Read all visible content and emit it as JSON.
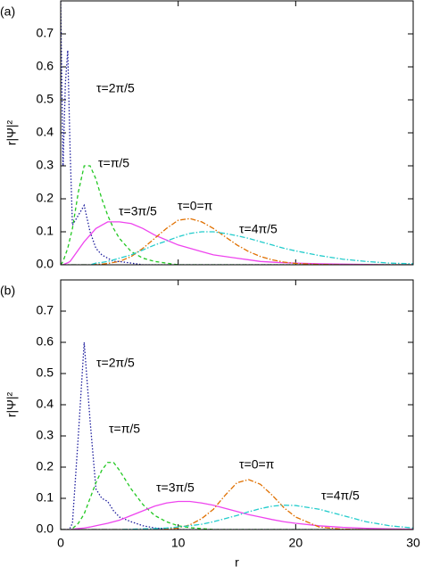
{
  "chart_data": [
    {
      "type": "line",
      "panel_label": "(a)",
      "ylabel": "r|Ψ|²",
      "x": [
        0,
        0.2,
        0.4,
        0.6,
        0.8,
        1,
        1.5,
        2,
        2.5,
        3,
        3.5,
        4,
        4.5,
        5,
        6,
        7,
        8,
        9,
        10,
        11,
        12,
        13,
        14,
        15,
        16,
        17,
        18,
        19,
        20,
        22,
        24,
        26,
        28,
        30
      ],
      "xlim": [
        0,
        30
      ],
      "xticks": [
        0,
        10,
        20,
        30
      ],
      "show_xtick_labels": false,
      "ylim": [
        0,
        0.8
      ],
      "yticks": [
        {
          "value": 0,
          "label": "0.0"
        },
        0.1,
        0.2,
        0.3,
        0.4,
        0.5,
        0.6,
        0.7
      ],
      "series": [
        {
          "name": "τ=2π/5",
          "color": "#1c1c9c",
          "linestyle": "dotted",
          "values": [
            0.8,
            0.3,
            0.55,
            0.65,
            0.35,
            0.12,
            0.15,
            0.18,
            0.1,
            0.05,
            0.03,
            0.02,
            0.01,
            0.01,
            0.005,
            0,
            0,
            0,
            0,
            0,
            0,
            0,
            0,
            0,
            0,
            0,
            0,
            0,
            0,
            0,
            0,
            0,
            0,
            0
          ]
        },
        {
          "name": "τ=π/5",
          "color": "#22c822",
          "linestyle": "dashed",
          "values": [
            0,
            0.01,
            0.03,
            0.05,
            0.08,
            0.11,
            0.22,
            0.3,
            0.3,
            0.26,
            0.2,
            0.15,
            0.11,
            0.08,
            0.04,
            0.02,
            0.01,
            0.005,
            0,
            0,
            0,
            0,
            0,
            0,
            0,
            0,
            0,
            0,
            0,
            0,
            0,
            0,
            0,
            0
          ]
        },
        {
          "name": "τ=3π/5",
          "color": "#ee44ee",
          "linestyle": "solid",
          "values": [
            0,
            0,
            0.003,
            0.006,
            0.01,
            0.02,
            0.045,
            0.07,
            0.09,
            0.11,
            0.12,
            0.13,
            0.13,
            0.13,
            0.125,
            0.11,
            0.09,
            0.075,
            0.06,
            0.05,
            0.04,
            0.03,
            0.025,
            0.02,
            0.015,
            0.01,
            0.008,
            0.006,
            0.005,
            0.003,
            0.002,
            0.001,
            0,
            0
          ]
        },
        {
          "name": "τ=0=π",
          "color": "#e07000",
          "linestyle": "dashdot",
          "values": [
            0,
            0,
            0,
            0,
            0,
            0,
            0,
            0,
            0,
            0.001,
            0.002,
            0.004,
            0.007,
            0.01,
            0.025,
            0.05,
            0.08,
            0.11,
            0.135,
            0.14,
            0.13,
            0.11,
            0.085,
            0.06,
            0.04,
            0.025,
            0.015,
            0.008,
            0.004,
            0.001,
            0,
            0,
            0,
            0
          ]
        },
        {
          "name": "τ=4π/5",
          "color": "#22cccc",
          "linestyle": "dashdot",
          "values": [
            0,
            0,
            0,
            0,
            0,
            0,
            0,
            0,
            0,
            0.005,
            0.007,
            0.01,
            0.015,
            0.02,
            0.03,
            0.045,
            0.06,
            0.072,
            0.085,
            0.095,
            0.1,
            0.1,
            0.095,
            0.088,
            0.08,
            0.07,
            0.06,
            0.05,
            0.042,
            0.028,
            0.017,
            0.01,
            0.005,
            0.003
          ]
        }
      ]
    },
    {
      "type": "line",
      "panel_label": "(b)",
      "ylabel": "r|Ψ|²",
      "xlabel": "r",
      "x": [
        0,
        0.2,
        0.4,
        0.6,
        0.8,
        1,
        1.5,
        2,
        2.5,
        3,
        3.5,
        4,
        4.5,
        5,
        6,
        7,
        8,
        9,
        10,
        11,
        12,
        13,
        14,
        15,
        16,
        17,
        18,
        19,
        20,
        22,
        24,
        26,
        28,
        30
      ],
      "xlim": [
        0,
        30
      ],
      "xticks": [
        0,
        10,
        20,
        30
      ],
      "show_xtick_labels": true,
      "ylim": [
        0,
        0.8
      ],
      "yticks": [
        {
          "value": 0,
          "label": "0.0"
        },
        0.1,
        0.2,
        0.3,
        0.4,
        0.5,
        0.6,
        0.7
      ],
      "series": [
        {
          "name": "τ=2π/5",
          "color": "#1c1c9c",
          "linestyle": "dotted",
          "values": [
            0,
            0,
            0,
            0,
            0.005,
            0.02,
            0.3,
            0.6,
            0.35,
            0.13,
            0.1,
            0.09,
            0.06,
            0.04,
            0.025,
            0.012,
            0.005,
            0.002,
            0,
            0,
            0,
            0,
            0,
            0,
            0,
            0,
            0,
            0,
            0,
            0,
            0,
            0,
            0,
            0
          ]
        },
        {
          "name": "τ=π/5",
          "color": "#22c822",
          "linestyle": "dashed",
          "values": [
            0,
            0,
            0,
            0,
            0,
            0.003,
            0.02,
            0.05,
            0.1,
            0.15,
            0.19,
            0.215,
            0.215,
            0.19,
            0.13,
            0.08,
            0.045,
            0.025,
            0.012,
            0.006,
            0.003,
            0,
            0,
            0,
            0,
            0,
            0,
            0,
            0,
            0,
            0,
            0,
            0,
            0
          ]
        },
        {
          "name": "τ=3π/5",
          "color": "#ee44ee",
          "linestyle": "solid",
          "values": [
            0,
            0,
            0,
            0,
            0,
            0.001,
            0.003,
            0.005,
            0.008,
            0.012,
            0.016,
            0.02,
            0.025,
            0.03,
            0.045,
            0.06,
            0.075,
            0.085,
            0.09,
            0.09,
            0.085,
            0.078,
            0.068,
            0.058,
            0.048,
            0.04,
            0.032,
            0.025,
            0.02,
            0.012,
            0.007,
            0.004,
            0.002,
            0.001
          ]
        },
        {
          "name": "τ=0=π",
          "color": "#e07000",
          "linestyle": "dashdot",
          "values": [
            0,
            0,
            0,
            0,
            0,
            0,
            0,
            0,
            0,
            0,
            0,
            0,
            0,
            0,
            0,
            0,
            0,
            0.001,
            0.005,
            0.015,
            0.035,
            0.065,
            0.11,
            0.15,
            0.16,
            0.145,
            0.11,
            0.07,
            0.04,
            0.008,
            0.001,
            0,
            0,
            0
          ]
        },
        {
          "name": "τ=4π/5",
          "color": "#22cccc",
          "linestyle": "dashdot",
          "values": [
            0,
            0,
            0,
            0,
            0,
            0,
            0,
            0,
            0,
            0,
            0,
            0,
            0,
            0,
            0.001,
            0.002,
            0.003,
            0.005,
            0.008,
            0.012,
            0.017,
            0.025,
            0.035,
            0.045,
            0.057,
            0.067,
            0.075,
            0.078,
            0.077,
            0.065,
            0.045,
            0.025,
            0.012,
            0.005
          ]
        }
      ]
    }
  ]
}
